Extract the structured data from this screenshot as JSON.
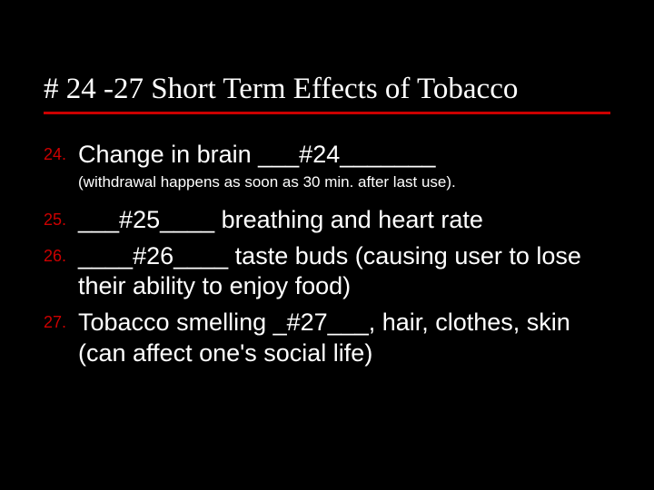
{
  "colors": {
    "background": "#000000",
    "text": "#ffffff",
    "accent": "#cc0000"
  },
  "title": "# 24 -27 Short Term Effects of Tobacco",
  "items": [
    {
      "num": "24.",
      "text": "Change in brain ___#24_______",
      "sub": "(withdrawal happens as soon as 30 min. after last use)."
    },
    {
      "num": "25.",
      "text": "___#25____ breathing and heart rate"
    },
    {
      "num": "26.",
      "text": "____#26____ taste buds (causing user to lose their ability to enjoy food)"
    },
    {
      "num": "27.",
      "text": " Tobacco smelling _#27___, hair, clothes, skin (can affect one's social life)"
    }
  ]
}
